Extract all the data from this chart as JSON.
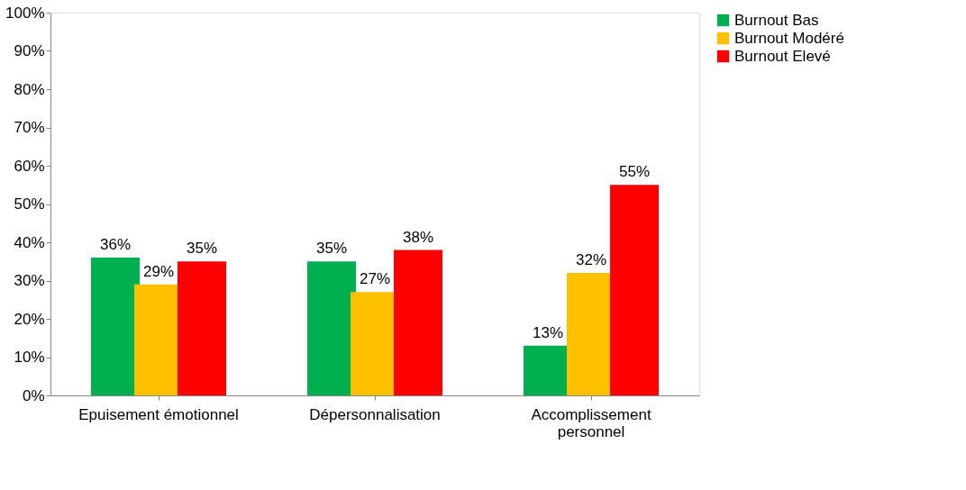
{
  "chart_data": {
    "type": "bar",
    "categories": [
      "Epuisement émotionnel",
      "Dépersonnalisation",
      "Accomplissement personnel"
    ],
    "series": [
      {
        "name": "Burnout Bas",
        "color": "#00b050",
        "values": [
          36,
          35,
          13
        ],
        "value_labels": [
          "36%",
          "35%",
          "13%"
        ]
      },
      {
        "name": "Burnout Modéré",
        "color": "#ffc000",
        "values": [
          29,
          27,
          32
        ],
        "value_labels": [
          "29%",
          "27%",
          "32%"
        ]
      },
      {
        "name": "Burnout Elevé",
        "color": "#ff0000",
        "values": [
          35,
          38,
          55
        ],
        "value_labels": [
          "35%",
          "38%",
          "55%"
        ]
      }
    ],
    "ylim": [
      0,
      100
    ],
    "yticks": [
      {
        "value": 0,
        "label": "0%"
      },
      {
        "value": 10,
        "label": "10%"
      },
      {
        "value": 20,
        "label": "20%"
      },
      {
        "value": 30,
        "label": "30%"
      },
      {
        "value": 40,
        "label": "40%"
      },
      {
        "value": 50,
        "label": "50%"
      },
      {
        "value": 60,
        "label": "60%"
      },
      {
        "value": 70,
        "label": "70%"
      },
      {
        "value": 80,
        "label": "80%"
      },
      {
        "value": 90,
        "label": "90%"
      },
      {
        "value": 100,
        "label": "100%"
      }
    ],
    "grid": false,
    "legend": "right"
  }
}
